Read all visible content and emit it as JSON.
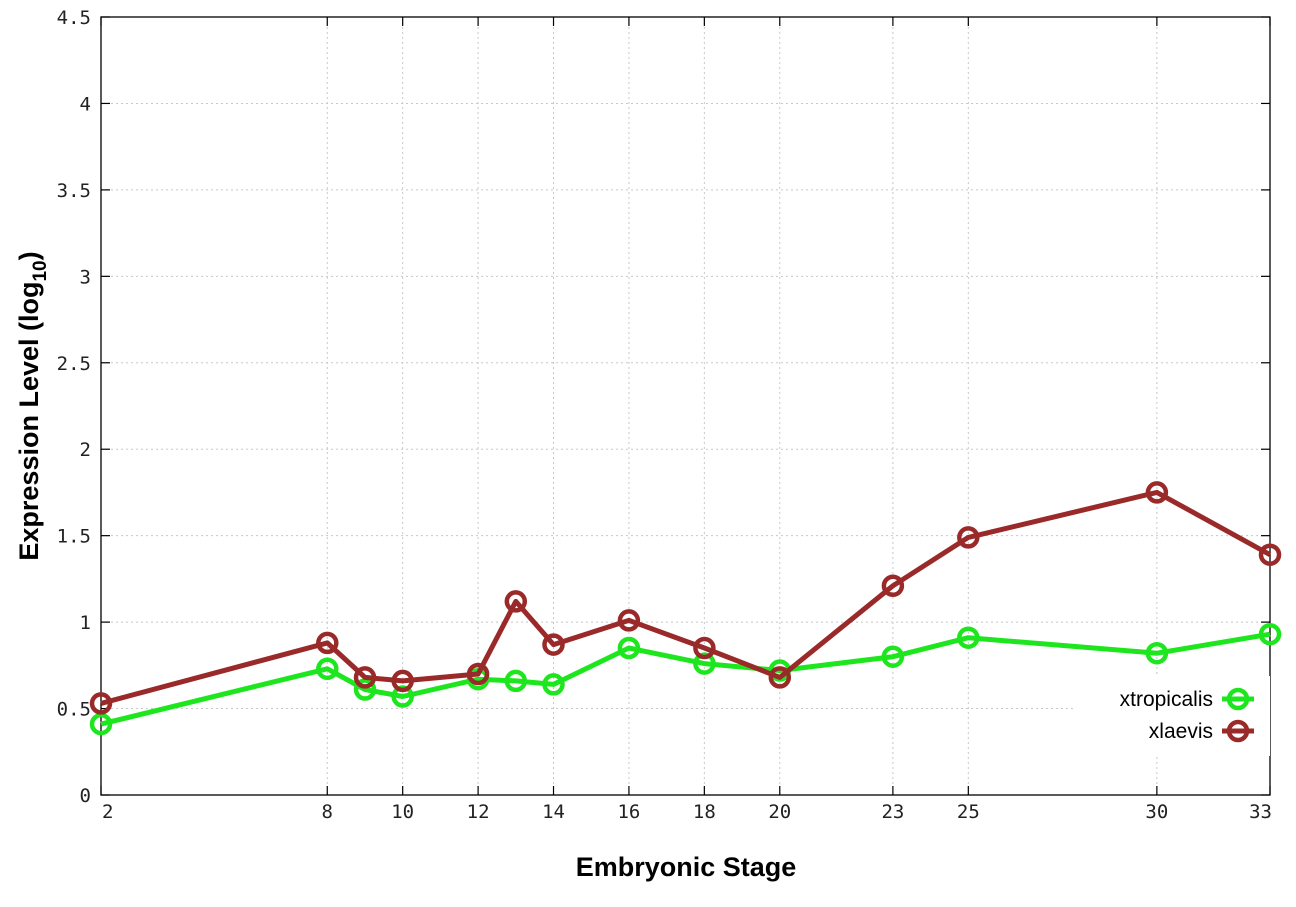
{
  "chart_data": {
    "type": "line",
    "xlabel": "Embryonic Stage",
    "ylabel_main": "Expression Level (log",
    "ylabel_sub": "10",
    "ylabel_close": ")",
    "xlim": [
      2,
      33
    ],
    "ylim": [
      0,
      4.5
    ],
    "x_ticks": [
      2,
      8,
      10,
      12,
      14,
      16,
      18,
      20,
      23,
      25,
      30,
      33
    ],
    "y_ticks": [
      0,
      0.5,
      1,
      1.5,
      2,
      2.5,
      3,
      3.5,
      4,
      4.5
    ],
    "y_tick_labels": [
      "0",
      "0.5",
      "1",
      "1.5",
      "2",
      "2.5",
      "3",
      "3.5",
      "4",
      "4.5"
    ],
    "grid": true,
    "legend_position": "bottom-right",
    "x": [
      2,
      8,
      9,
      10,
      12,
      13,
      14,
      16,
      18,
      20,
      23,
      25,
      30,
      33
    ],
    "series": [
      {
        "name": "xtropicalis",
        "color": "#1ee61e",
        "values": [
          0.41,
          0.73,
          0.61,
          0.57,
          0.67,
          0.66,
          0.64,
          0.85,
          0.76,
          0.72,
          0.8,
          0.91,
          0.82,
          0.93
        ]
      },
      {
        "name": "xlaevis",
        "color": "#9a2a2a",
        "values": [
          0.53,
          0.88,
          0.68,
          0.66,
          0.7,
          1.12,
          0.87,
          1.01,
          0.85,
          0.68,
          1.21,
          1.49,
          1.75,
          1.39
        ]
      }
    ]
  }
}
